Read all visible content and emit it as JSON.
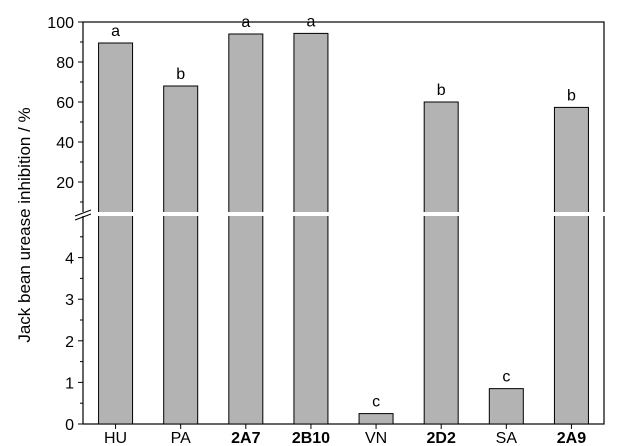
{
  "chart_data": {
    "type": "bar",
    "ylabel": "Jack bean urease inhibition / %",
    "categories": [
      "HU",
      "PA",
      "2A7",
      "2B10",
      "VN",
      "2D2",
      "SA",
      "2A9"
    ],
    "bold_categories": [
      "2A7",
      "2B10",
      "2D2",
      "2A9"
    ],
    "values": [
      89.5,
      68,
      94,
      94.3,
      0.25,
      60,
      0.85,
      57.3
    ],
    "significance": [
      "a",
      "b",
      "a",
      "a",
      "c",
      "b",
      "c",
      "b"
    ],
    "y_axis": {
      "broken": true,
      "lower_segment": {
        "ylim": [
          0,
          5
        ],
        "ticks": [
          "0",
          "1",
          "2",
          "3",
          "4"
        ]
      },
      "upper_segment": {
        "ylim": [
          5,
          100
        ],
        "ticks": [
          "20",
          "40",
          "60",
          "80",
          "100"
        ]
      }
    },
    "bar_color": "#b3b3b3",
    "edge_color": "#000000",
    "grid": false
  }
}
